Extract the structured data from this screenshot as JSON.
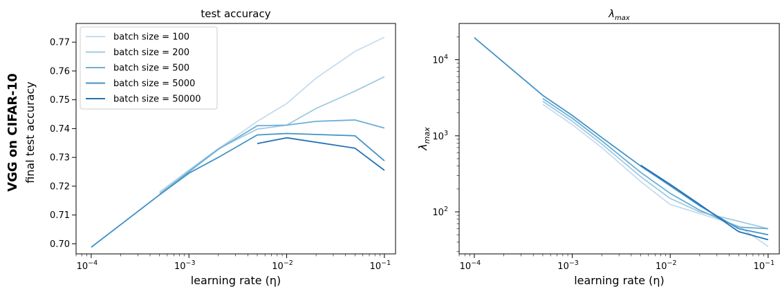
{
  "figure": {
    "row_label": "VGG on CIFAR-10",
    "row_sublabel": "final test accuracy"
  },
  "chart_data": [
    {
      "type": "line",
      "title": "test accuracy",
      "xlabel": "learning rate (η)",
      "ylabel": "final test accuracy",
      "xscale": "log",
      "xlim": [
        7e-05,
        0.13
      ],
      "ylim": [
        0.6965,
        0.7765
      ],
      "xticks": [
        {
          "value": 0.0001,
          "base": "10",
          "exp": "−4"
        },
        {
          "value": 0.001,
          "base": "10",
          "exp": "−3"
        },
        {
          "value": 0.01,
          "base": "10",
          "exp": "−2"
        },
        {
          "value": 0.1,
          "base": "10",
          "exp": "−1"
        }
      ],
      "yticks": [
        0.7,
        0.71,
        0.72,
        0.73,
        0.74,
        0.75,
        0.76,
        0.77
      ],
      "ytick_labels": [
        "0.70",
        "0.71",
        "0.72",
        "0.73",
        "0.74",
        "0.75",
        "0.76",
        "0.77"
      ],
      "legend_position": "upper-left",
      "series": [
        {
          "name": "batch size = 100",
          "color": "#c6dbef",
          "points": [
            [
              0.0005,
              0.718
            ],
            [
              0.001,
              0.7255
            ],
            [
              0.002,
              0.733
            ],
            [
              0.005,
              0.7425
            ],
            [
              0.01,
              0.7487
            ],
            [
              0.02,
              0.7575
            ],
            [
              0.05,
              0.7668
            ],
            [
              0.1,
              0.7717
            ]
          ]
        },
        {
          "name": "batch size = 200",
          "color": "#9ecae1",
          "points": [
            [
              0.0005,
              0.7175
            ],
            [
              0.001,
              0.7255
            ],
            [
              0.002,
              0.733
            ],
            [
              0.005,
              0.7398
            ],
            [
              0.01,
              0.7412
            ],
            [
              0.02,
              0.747
            ],
            [
              0.05,
              0.753
            ],
            [
              0.1,
              0.758
            ]
          ]
        },
        {
          "name": "batch size = 500",
          "color": "#6baed6",
          "points": [
            [
              0.0005,
              0.717
            ],
            [
              0.001,
              0.725
            ],
            [
              0.002,
              0.7328
            ],
            [
              0.005,
              0.741
            ],
            [
              0.01,
              0.7412
            ],
            [
              0.02,
              0.7425
            ],
            [
              0.05,
              0.743
            ],
            [
              0.1,
              0.7402
            ]
          ]
        },
        {
          "name": "batch size = 5000",
          "color": "#4292c6",
          "points": [
            [
              0.0001,
              0.6988
            ],
            [
              0.0005,
              0.717
            ],
            [
              0.001,
              0.7245
            ],
            [
              0.002,
              0.73
            ],
            [
              0.005,
              0.7378
            ],
            [
              0.01,
              0.7383
            ],
            [
              0.05,
              0.7375
            ],
            [
              0.1,
              0.7288
            ]
          ]
        },
        {
          "name": "batch size = 50000",
          "color": "#2171b5",
          "points": [
            [
              0.005,
              0.7348
            ],
            [
              0.01,
              0.7368
            ],
            [
              0.05,
              0.7332
            ],
            [
              0.1,
              0.7255
            ]
          ]
        }
      ]
    },
    {
      "type": "line",
      "title": "λ_max",
      "title_main": "λ",
      "title_sub": "max",
      "xlabel": "learning rate (η)",
      "ylabel": "λ_max",
      "ylabel_main": "λ",
      "ylabel_sub": "max",
      "xscale": "log",
      "yscale": "log",
      "xlim": [
        7e-05,
        0.13
      ],
      "ylim": [
        28,
        30000
      ],
      "xticks": [
        {
          "value": 0.0001,
          "base": "10",
          "exp": "−4"
        },
        {
          "value": 0.001,
          "base": "10",
          "exp": "−3"
        },
        {
          "value": 0.01,
          "base": "10",
          "exp": "−2"
        },
        {
          "value": 0.1,
          "base": "10",
          "exp": "−1"
        }
      ],
      "yticks": [
        {
          "value": 100,
          "base": "10",
          "exp": "2"
        },
        {
          "value": 1000,
          "base": "10",
          "exp": "3"
        },
        {
          "value": 10000,
          "base": "10",
          "exp": "4"
        }
      ],
      "series": [
        {
          "name": "batch size = 100",
          "color": "#c6dbef",
          "points": [
            [
              0.0005,
              2600
            ],
            [
              0.001,
              1400
            ],
            [
              0.002,
              700
            ],
            [
              0.005,
              250
            ],
            [
              0.01,
              125
            ],
            [
              0.02,
              95
            ],
            [
              0.05,
              65
            ],
            [
              0.1,
              35
            ]
          ]
        },
        {
          "name": "batch size = 200",
          "color": "#9ecae1",
          "points": [
            [
              0.0005,
              2850
            ],
            [
              0.001,
              1550
            ],
            [
              0.002,
              780
            ],
            [
              0.005,
              290
            ],
            [
              0.01,
              150
            ],
            [
              0.02,
              100
            ],
            [
              0.05,
              75
            ],
            [
              0.1,
              60
            ]
          ]
        },
        {
          "name": "batch size = 500",
          "color": "#6baed6",
          "points": [
            [
              0.0005,
              3100
            ],
            [
              0.001,
              1700
            ],
            [
              0.002,
              860
            ],
            [
              0.005,
              330
            ],
            [
              0.01,
              175
            ],
            [
              0.02,
              105
            ],
            [
              0.05,
              63
            ],
            [
              0.1,
              60
            ]
          ]
        },
        {
          "name": "batch size = 5000",
          "color": "#4292c6",
          "points": [
            [
              0.0001,
              19500
            ],
            [
              0.0005,
              3400
            ],
            [
              0.001,
              1850
            ],
            [
              0.002,
              950
            ],
            [
              0.005,
              400
            ],
            [
              0.01,
              220
            ],
            [
              0.02,
              120
            ],
            [
              0.05,
              60
            ],
            [
              0.1,
              50
            ]
          ]
        },
        {
          "name": "batch size = 50000",
          "color": "#2171b5",
          "points": [
            [
              0.005,
              410
            ],
            [
              0.01,
              230
            ],
            [
              0.02,
              125
            ],
            [
              0.05,
              55
            ],
            [
              0.1,
              43
            ]
          ]
        }
      ]
    }
  ]
}
